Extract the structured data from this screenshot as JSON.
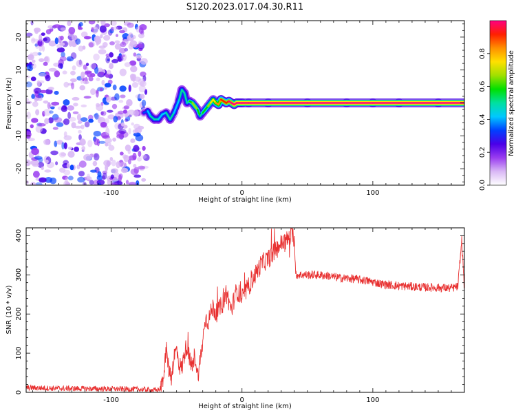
{
  "title": "S120.2023.017.04.30.R11",
  "chart_data": [
    {
      "type": "heatmap",
      "xlabel": "Height of straight line (km)",
      "ylabel": "Frequency (Hz)",
      "xlim": [
        -165,
        170
      ],
      "ylim": [
        -25,
        25
      ],
      "x_ticks": [
        -100,
        0,
        100
      ],
      "y_ticks": [
        -20,
        -10,
        0,
        10,
        20
      ],
      "colorbar": {
        "label": "Normalized spectral amplitude",
        "range": [
          0.0,
          1.0
        ],
        "ticks": [
          "0.0",
          "0.2",
          "0.4",
          "0.6",
          "0.8"
        ],
        "colors": [
          "#ffffff",
          "#d9b8f5",
          "#9a3df0",
          "#4a00e8",
          "#0040ff",
          "#00c8ff",
          "#00e0a0",
          "#00e000",
          "#a0e000",
          "#ffe000",
          "#ff9000",
          "#ff2000",
          "#ff0080"
        ]
      },
      "noise_region_x": [
        -165,
        -73
      ],
      "ridge": {
        "x": [
          -75,
          -72,
          -70,
          -67,
          -64,
          -61,
          -58,
          -55,
          -52,
          -50,
          -48,
          -46,
          -44,
          -42,
          -40,
          -38,
          -36,
          -34,
          -32,
          -30,
          -28,
          -26,
          -24,
          -22,
          -20,
          -18,
          -16,
          -14,
          -12,
          -10,
          -8,
          -6,
          -4,
          -2,
          0,
          5,
          20,
          50,
          80,
          100,
          120,
          150,
          170
        ],
        "y": [
          -3,
          -2.5,
          -4,
          -5,
          -5,
          -3.5,
          -3,
          -5,
          -3,
          -1,
          1,
          4,
          3,
          0,
          0.5,
          0,
          -1,
          -2,
          -4,
          -3,
          -2,
          -1,
          0,
          1,
          0,
          -0.5,
          1,
          0.5,
          0,
          0.5,
          0,
          -0.5,
          0,
          0,
          0,
          0,
          0,
          0,
          0,
          0,
          0,
          0,
          0
        ],
        "amplitude": [
          0.35,
          0.3,
          0.45,
          0.5,
          0.45,
          0.35,
          0.4,
          0.5,
          0.4,
          0.35,
          0.4,
          0.5,
          0.45,
          0.4,
          0.5,
          0.6,
          0.65,
          0.55,
          0.45,
          0.5,
          0.55,
          0.6,
          0.7,
          0.7,
          0.75,
          0.8,
          0.85,
          0.85,
          0.9,
          0.9,
          0.95,
          0.95,
          1.0,
          1.0,
          1.0,
          1.0,
          1.0,
          1.0,
          1.0,
          1.0,
          1.0,
          1.0,
          1.0
        ]
      }
    },
    {
      "type": "line",
      "xlabel": "Height of straight line (km)",
      "ylabel": "SNR (10 * v/v)",
      "xlim": [
        -165,
        170
      ],
      "ylim": [
        0,
        420
      ],
      "x_ticks": [
        -100,
        0,
        100
      ],
      "y_ticks": [
        0,
        100,
        200,
        300,
        400
      ],
      "line_color": "#e83030",
      "series": [
        {
          "x": [
            -165,
            -140,
            -110,
            -80,
            -65,
            -62,
            -60,
            -58,
            -56,
            -54,
            -52,
            -50,
            -48,
            -46,
            -44,
            -42,
            -40,
            -38,
            -36,
            -34,
            -32,
            -30,
            -28,
            -26,
            -24,
            -22,
            -20,
            -18,
            -16,
            -14,
            -12,
            -10,
            -8,
            -6,
            -4,
            -2,
            0,
            5,
            10,
            15,
            20,
            25,
            30,
            35,
            38,
            40,
            41,
            45,
            55,
            65,
            75,
            85,
            95,
            100,
            105,
            110,
            120,
            130,
            140,
            150,
            160,
            165,
            167,
            168,
            170
          ],
          "y": [
            12,
            10,
            9,
            8,
            5,
            10,
            30,
            110,
            60,
            40,
            90,
            110,
            70,
            60,
            100,
            120,
            80,
            60,
            100,
            40,
            80,
            130,
            190,
            180,
            200,
            220,
            200,
            210,
            220,
            230,
            260,
            230,
            210,
            240,
            260,
            250,
            240,
            270,
            300,
            330,
            340,
            360,
            380,
            390,
            400,
            395,
            300,
            300,
            300,
            298,
            292,
            290,
            285,
            282,
            278,
            275,
            272,
            270,
            268,
            267,
            266,
            270,
            350,
            390,
            260
          ]
        }
      ]
    }
  ]
}
